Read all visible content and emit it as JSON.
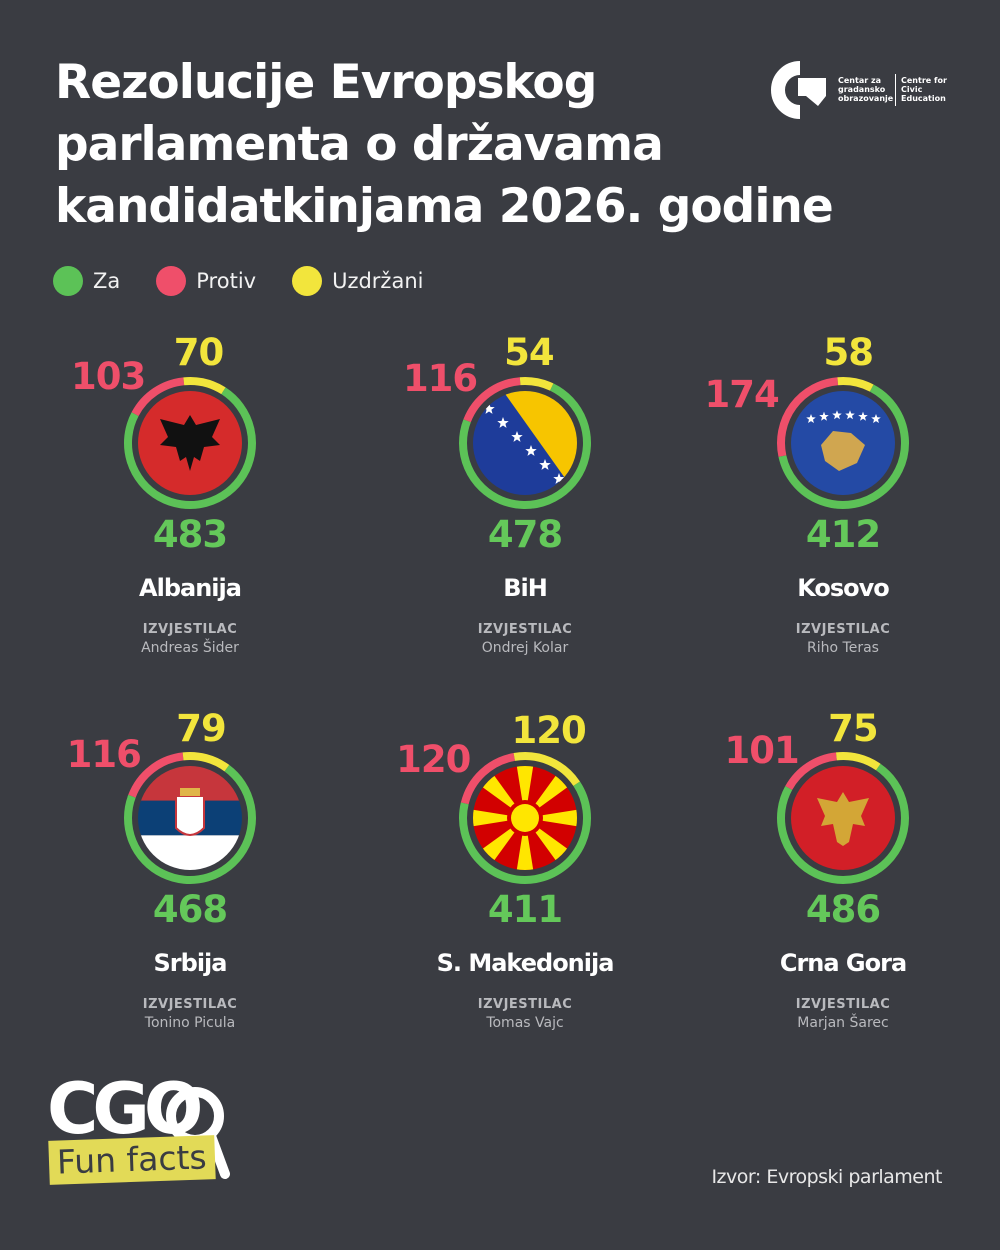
{
  "title": "Rezolucije Evropskog parlamenta o državama kandidatkinjama 2026. godine",
  "logo": {
    "line1": "Centar za gradansko obrazovanje",
    "line2": "Centre for Civic Education"
  },
  "legend": [
    {
      "label": "Za",
      "color": "#5cc257"
    },
    {
      "label": "Protiv",
      "color": "#ef4f6a"
    },
    {
      "label": "Uzdržani",
      "color": "#f2e53c"
    }
  ],
  "report_label": "IZVJESTILAC",
  "chart_data": {
    "type": "donut",
    "series_names": [
      "Za",
      "Protiv",
      "Uzdržani"
    ],
    "colors": {
      "for": "#5cc257",
      "against": "#ef4f6a",
      "abstain": "#f2e53c"
    },
    "countries": [
      {
        "name": "Albanija",
        "flag": "albania",
        "for": 483,
        "against": 103,
        "abstain": 70,
        "rapporteur": "Andreas Šider"
      },
      {
        "name": "BiH",
        "flag": "bih",
        "for": 478,
        "against": 116,
        "abstain": 54,
        "rapporteur": "Ondrej Kolar"
      },
      {
        "name": "Kosovo",
        "flag": "kosovo",
        "for": 412,
        "against": 174,
        "abstain": 58,
        "rapporteur": "Riho Teras"
      },
      {
        "name": "Srbija",
        "flag": "serbia",
        "for": 468,
        "against": 116,
        "abstain": 79,
        "rapporteur": "Tonino Picula"
      },
      {
        "name": "S. Makedonija",
        "flag": "north-macedonia",
        "for": 411,
        "against": 120,
        "abstain": 120,
        "rapporteur": "Tomas Vajc"
      },
      {
        "name": "Crna Gora",
        "flag": "montenegro",
        "for": 486,
        "against": 101,
        "abstain": 75,
        "rapporteur": "Marjan Šarec"
      }
    ]
  },
  "branding": {
    "cgo": "CGO",
    "fun_facts": "Fun facts"
  },
  "source": "Izvor: Evropski parlament"
}
